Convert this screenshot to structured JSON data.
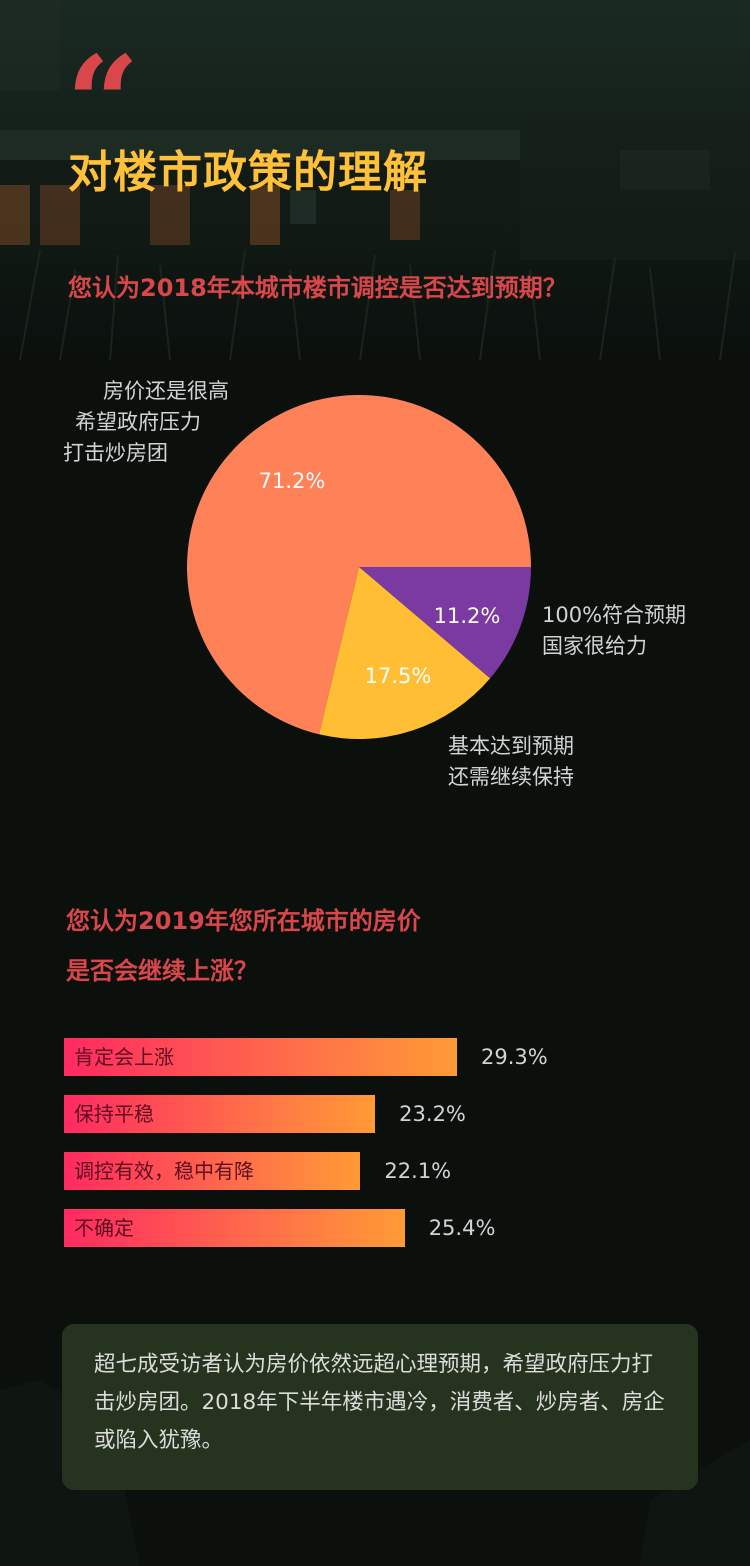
{
  "header": {
    "quote_mark": "“",
    "section_title": "对楼市政策的理解"
  },
  "question1": "您认为2018年本城市楼市调控是否达到预期？",
  "question2_line1": "您认为2019年您所在城市的房价",
  "question2_line2": "是否会继续上涨？",
  "colors": {
    "accent_red": "#d9474a",
    "title_yellow": "#ffc13a",
    "pie_orange": "#ff8157",
    "pie_yellow": "#ffbe33",
    "pie_purple": "#7a3aa1"
  },
  "chart_data": [
    {
      "type": "pie",
      "slices": [
        {
          "value": 71.2,
          "label": "71.2%",
          "desc": [
            "房价还是很高",
            "希望政府压力",
            "打击炒房团"
          ],
          "color": "#ff8157"
        },
        {
          "value": 11.2,
          "label": "11.2%",
          "desc": [
            "100%符合预期",
            "国家很给力"
          ],
          "color": "#7a3aa1"
        },
        {
          "value": 17.5,
          "label": "17.5%",
          "desc": [
            "基本达到预期",
            "还需继续保持"
          ],
          "color": "#ffbe33"
        }
      ]
    },
    {
      "type": "bar",
      "orientation": "horizontal",
      "categories": [
        "肯定会上涨",
        "保持平稳",
        "调控有效，稳中有降",
        "不确定"
      ],
      "values": [
        29.3,
        23.2,
        22.1,
        25.4
      ],
      "value_labels": [
        "29.3%",
        "23.2%",
        "22.1%",
        "25.4%"
      ]
    }
  ],
  "note": "超七成受访者认为房价依然远超心理预期，希望政府压力打击炒房团。2018年下半年楼市遇冷，消费者、炒房者、房企或陷入犹豫。"
}
